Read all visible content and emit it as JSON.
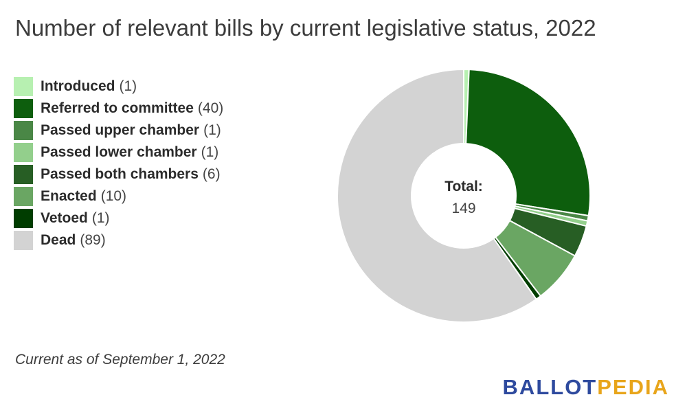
{
  "chart_data": {
    "type": "pie",
    "variant": "donut",
    "title": "Number of relevant bills by current legislative status, 2022",
    "categories": [
      "Introduced",
      "Referred to committee",
      "Passed upper chamber",
      "Passed lower chamber",
      "Passed both chambers",
      "Enacted",
      "Vetoed",
      "Dead"
    ],
    "values": [
      1,
      40,
      1,
      1,
      6,
      10,
      1,
      89
    ],
    "count_labels": [
      "(1)",
      "(40)",
      "(1)",
      "(1)",
      "(6)",
      "(10)",
      "(1)",
      "(89)"
    ],
    "colors": [
      "#b7f0b1",
      "#0d5e0d",
      "#4a8746",
      "#93cf8c",
      "#275e24",
      "#6aa663",
      "#003d00",
      "#d3d3d3"
    ],
    "center_label": "Total:",
    "center_value": "149",
    "legend_position": "left"
  },
  "footnote": "Current as of September 1, 2022",
  "brand": {
    "part1": "BALLOT",
    "part2": "PEDIA",
    "color1": "#2e4a9e",
    "color2": "#e8a51b"
  }
}
